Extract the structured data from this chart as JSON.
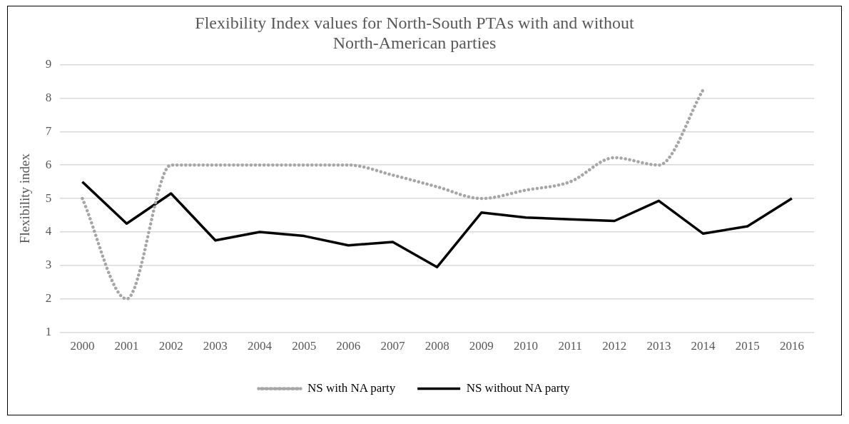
{
  "chart_data": {
    "type": "line",
    "title": "Flexibility Index values for North-South PTAs with and without North-American parties",
    "ylabel": "Flexibility index",
    "categories": [
      "2000",
      "2001",
      "2002",
      "2003",
      "2004",
      "2005",
      "2006",
      "2007",
      "2008",
      "2009",
      "2010",
      "2011",
      "2012",
      "2013",
      "2014",
      "2015",
      "2016"
    ],
    "series": [
      {
        "name": "NS with NA party",
        "color": "#a6a6a6",
        "line_style": "dotted",
        "values": [
          5,
          2,
          6,
          6,
          6,
          6,
          6,
          5.7,
          5.35,
          5,
          5.25,
          5.5,
          6.22,
          6,
          8.25,
          null,
          null
        ]
      },
      {
        "name": "NS without NA party",
        "color": "#000000",
        "line_style": "solid",
        "values": [
          5.5,
          4.25,
          5.15,
          3.75,
          4,
          3.88,
          3.6,
          3.7,
          2.95,
          4.58,
          4.43,
          4.38,
          4.33,
          4.93,
          3.95,
          4.17,
          5
        ]
      }
    ],
    "ylim": [
      1,
      9
    ],
    "yticks": [
      1,
      2,
      3,
      4,
      5,
      6,
      7,
      8,
      9
    ],
    "grid": "y",
    "legend": "bottom"
  }
}
